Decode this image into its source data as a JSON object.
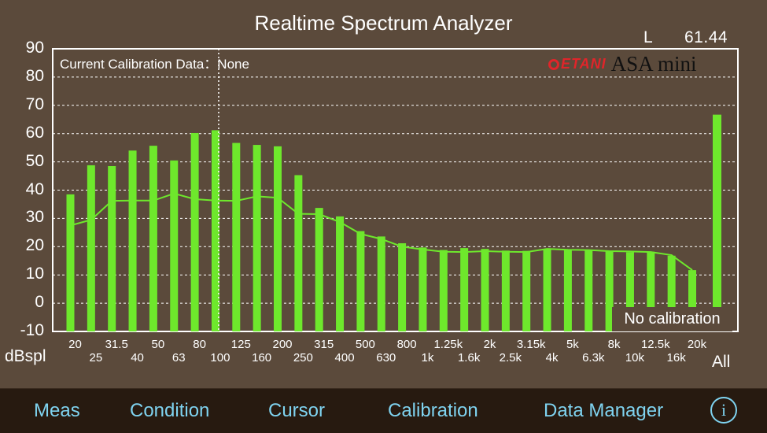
{
  "app": {
    "title": "Realtime Spectrum Analyzer"
  },
  "readout": {
    "channel": "L",
    "value": "61.44"
  },
  "calibration": {
    "text": "Current Calibration Data：None",
    "status": "No calibration"
  },
  "brand": {
    "name": "ETANI",
    "model": "ASA mini"
  },
  "colors": {
    "bar": "#6ee82c",
    "background": "#5b4a3b",
    "toolbar": "#271a10",
    "toolbar_text": "#7fd3f0"
  },
  "chart_data": {
    "type": "bar",
    "title": "Realtime Spectrum Analyzer",
    "ylabel": "dBspl",
    "ylim": [
      -10,
      90
    ],
    "yticks": [
      "90",
      "80",
      "70",
      "60",
      "50",
      "40",
      "30",
      "20",
      "10",
      "0",
      "-10"
    ],
    "grid": true,
    "categories": [
      "20",
      "25",
      "31.5",
      "40",
      "50",
      "63",
      "80",
      "100",
      "125",
      "160",
      "200",
      "250",
      "315",
      "400",
      "500",
      "630",
      "800",
      "1k",
      "1.25k",
      "1.6k",
      "2k",
      "2.5k",
      "3.15k",
      "4k",
      "5k",
      "6.3k",
      "8k",
      "10k",
      "12.5k",
      "16k",
      "20k"
    ],
    "series": [
      {
        "values": [
          38.5,
          48.8,
          48.5,
          54.0,
          55.7,
          50.5,
          60.2,
          61.2,
          56.7,
          56.0,
          55.5,
          45.3,
          33.7,
          30.7,
          25.5,
          23.6,
          21.2,
          19.7,
          18.8,
          19.5,
          19.2,
          18.6,
          18.5,
          19.0,
          18.8,
          18.8,
          18.3,
          18.0,
          18.2,
          16.8,
          11.7
        ]
      },
      {
        "type": "line",
        "values": [
          27.5,
          29.5,
          36.2,
          36.3,
          36.3,
          38.8,
          36.8,
          36.3,
          36.2,
          37.8,
          37.3,
          31.6,
          31.5,
          28.7,
          24.5,
          22.7,
          20.0,
          19.0,
          18.2,
          18.1,
          18.4,
          18.2,
          18.1,
          19.2,
          18.9,
          18.8,
          18.4,
          18.3,
          18.1,
          17.0,
          11.7
        ]
      }
    ],
    "overall": {
      "label": "All",
      "value": 66.7
    },
    "cursor_category": "100"
  },
  "toolbar": {
    "items": [
      {
        "label": "Meas"
      },
      {
        "label": "Condition"
      },
      {
        "label": "Cursor"
      },
      {
        "label": "Calibration"
      },
      {
        "label": "Data Manager"
      }
    ],
    "info_glyph": "i"
  }
}
